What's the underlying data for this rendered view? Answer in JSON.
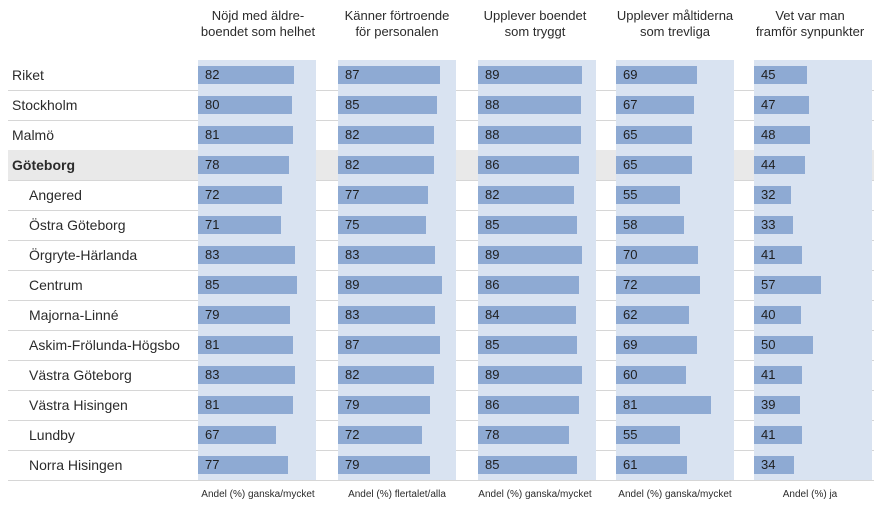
{
  "chart_data": {
    "type": "bar",
    "columns": [
      {
        "header_lines": [
          "Nöjd med äldre-",
          "boendet som helhet"
        ],
        "footer": "Andel (%) ganska/mycket",
        "max": 100
      },
      {
        "header_lines": [
          "Känner förtroende",
          "för personalen"
        ],
        "footer": "Andel (%) flertalet/alla",
        "max": 100
      },
      {
        "header_lines": [
          "Upplever boendet",
          "som tryggt"
        ],
        "footer": "Andel (%) ganska/mycket",
        "max": 100
      },
      {
        "header_lines": [
          "Upplever måltiderna",
          "som trevliga"
        ],
        "footer": "Andel (%) ganska/mycket",
        "max": 100
      },
      {
        "header_lines": [
          "Vet var man",
          "framför synpunkter"
        ],
        "footer": "Andel (%) ja",
        "max": 100
      }
    ],
    "categories": [
      "Riket",
      "Stockholm",
      "Malmö",
      "Göteborg",
      "Angered",
      "Östra Göteborg",
      "Örgryte-Härlanda",
      "Centrum",
      "Majorna-Linné",
      "Askim-Frölunda-Högsbo",
      "Västra Göteborg",
      "Västra Hisingen",
      "Lundby",
      "Norra Hisingen"
    ],
    "highlighted_category": "Göteborg",
    "sub_categories": [
      "Angered",
      "Östra Göteborg",
      "Örgryte-Härlanda",
      "Centrum",
      "Majorna-Linné",
      "Askim-Frölunda-Högsbo",
      "Västra Göteborg",
      "Västra Hisingen",
      "Lundby",
      "Norra Hisingen"
    ],
    "values": [
      [
        82,
        87,
        89,
        69,
        45
      ],
      [
        80,
        85,
        88,
        67,
        47
      ],
      [
        81,
        82,
        88,
        65,
        48
      ],
      [
        78,
        82,
        86,
        65,
        44
      ],
      [
        72,
        77,
        82,
        55,
        32
      ],
      [
        71,
        75,
        85,
        58,
        33
      ],
      [
        83,
        83,
        89,
        70,
        41
      ],
      [
        85,
        89,
        86,
        72,
        57
      ],
      [
        79,
        83,
        84,
        62,
        40
      ],
      [
        81,
        87,
        85,
        69,
        50
      ],
      [
        83,
        82,
        89,
        60,
        41
      ],
      [
        81,
        79,
        86,
        81,
        39
      ],
      [
        67,
        72,
        78,
        55,
        41
      ],
      [
        77,
        79,
        85,
        61,
        34
      ]
    ],
    "colors": {
      "bar": "#8eaad3",
      "column_background": "#d9e3f1",
      "highlight_row": "#e9e9e9",
      "row_line": "#d6d6d6"
    }
  }
}
